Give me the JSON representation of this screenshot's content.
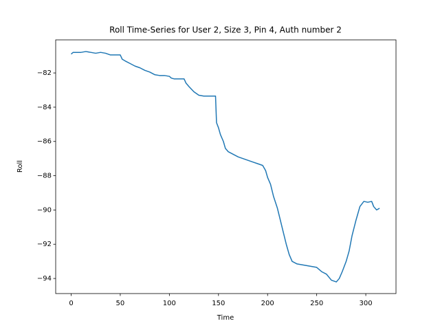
{
  "chart_data": {
    "type": "line",
    "title": "Roll Time-Series for User 2, Size 3, Pin 4, Auth number 2",
    "x_label": "Time",
    "y_label": "Roll",
    "color": "#1f77b4",
    "x": [
      0,
      2,
      10,
      15,
      20,
      25,
      30,
      35,
      40,
      50,
      52,
      55,
      60,
      65,
      70,
      75,
      80,
      85,
      90,
      95,
      100,
      102,
      105,
      115,
      117,
      120,
      125,
      130,
      135,
      147,
      148,
      150,
      152,
      155,
      157,
      160,
      165,
      170,
      175,
      180,
      185,
      190,
      195,
      198,
      200,
      203,
      206,
      210,
      213,
      216,
      219,
      222,
      225,
      230,
      240,
      250,
      255,
      260,
      265,
      270,
      273,
      276,
      280,
      283,
      286,
      290,
      294,
      298,
      302,
      306,
      308,
      311,
      314
    ],
    "values": [
      -80.9,
      -80.8,
      -80.8,
      -80.75,
      -80.8,
      -80.85,
      -80.8,
      -80.85,
      -80.95,
      -80.95,
      -81.2,
      -81.3,
      -81.45,
      -81.6,
      -81.7,
      -81.85,
      -81.95,
      -82.1,
      -82.15,
      -82.15,
      -82.2,
      -82.3,
      -82.35,
      -82.35,
      -82.6,
      -82.8,
      -83.1,
      -83.3,
      -83.35,
      -83.35,
      -84.9,
      -85.2,
      -85.6,
      -86.0,
      -86.4,
      -86.6,
      -86.75,
      -86.9,
      -87.0,
      -87.1,
      -87.2,
      -87.3,
      -87.4,
      -87.7,
      -88.1,
      -88.5,
      -89.2,
      -89.9,
      -90.6,
      -91.3,
      -92.0,
      -92.6,
      -93.0,
      -93.15,
      -93.25,
      -93.35,
      -93.6,
      -93.75,
      -94.1,
      -94.2,
      -94.0,
      -93.6,
      -93.0,
      -92.4,
      -91.5,
      -90.6,
      -89.8,
      -89.5,
      -89.55,
      -89.5,
      -89.8,
      -90.0,
      -89.9
    ],
    "xlim": [
      -15.75,
      330.75
    ],
    "ylim": [
      -94.88,
      -80.07
    ],
    "xticks": [
      0,
      50,
      100,
      150,
      200,
      250,
      300
    ],
    "yticks": [
      {
        "value": -94,
        "label": "−94"
      },
      {
        "value": -92,
        "label": "−92"
      },
      {
        "value": -90,
        "label": "−90"
      },
      {
        "value": -88,
        "label": "−88"
      },
      {
        "value": -86,
        "label": "−86"
      },
      {
        "value": -84,
        "label": "−84"
      },
      {
        "value": -82,
        "label": "−82"
      }
    ]
  }
}
